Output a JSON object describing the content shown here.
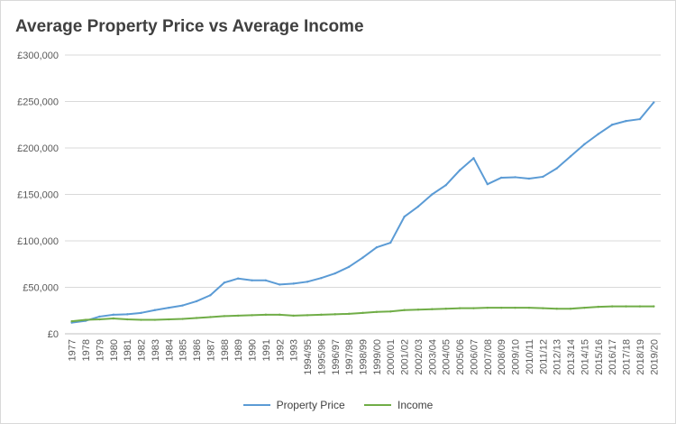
{
  "chart_data": {
    "type": "line",
    "title": "Average Property Price vs Average Income",
    "xlabel": "",
    "ylabel": "",
    "ylim": [
      0,
      300000
    ],
    "yticks": [
      0,
      50000,
      100000,
      150000,
      200000,
      250000,
      300000
    ],
    "ytick_labels": [
      "£0",
      "£50,000",
      "£100,000",
      "£150,000",
      "£200,000",
      "£250,000",
      "£300,000"
    ],
    "grid": "horizontal",
    "legend_position": "bottom",
    "categories": [
      "1977",
      "1978",
      "1979",
      "1980",
      "1981",
      "1982",
      "1983",
      "1984",
      "1985",
      "1986",
      "1987",
      "1988",
      "1989",
      "1990",
      "1991",
      "1992",
      "1993",
      "1994/95",
      "1995/96",
      "1996/97",
      "1997/98",
      "1998/99",
      "1999/00",
      "2000/01",
      "2001/02",
      "2002/03",
      "2003/04",
      "2004/05",
      "2005/06",
      "2006/07",
      "2007/08",
      "2008/09",
      "2009/10",
      "2010/11",
      "2011/12",
      "2012/13",
      "2013/14",
      "2014/15",
      "2015/16",
      "2016/17",
      "2017/18",
      "2018/19",
      "2019/20"
    ],
    "series": [
      {
        "name": "Property Price",
        "color": "#5b9bd5",
        "values": [
          12000,
          14000,
          18500,
          20500,
          21000,
          22500,
          25500,
          28000,
          30500,
          35000,
          41500,
          55000,
          59500,
          57500,
          57500,
          53000,
          54000,
          56000,
          60000,
          65000,
          72000,
          82000,
          93000,
          98000,
          126000,
          137000,
          150000,
          160000,
          176000,
          189000,
          161000,
          168000,
          168500,
          167000,
          169000,
          178000,
          191000,
          204000,
          215000,
          225000,
          229000,
          231000,
          249000
        ]
      },
      {
        "name": "Income",
        "color": "#70ad47",
        "values": [
          13500,
          15000,
          15500,
          16500,
          15500,
          15000,
          15000,
          15500,
          16000,
          17000,
          18000,
          19000,
          19500,
          20000,
          20500,
          20500,
          19500,
          20000,
          20500,
          21000,
          21500,
          22500,
          23500,
          24000,
          25500,
          26000,
          26500,
          27000,
          27500,
          27500,
          28000,
          28000,
          28000,
          28000,
          27500,
          27000,
          27000,
          28000,
          29000,
          29500,
          29500,
          29500,
          29500
        ]
      }
    ]
  }
}
